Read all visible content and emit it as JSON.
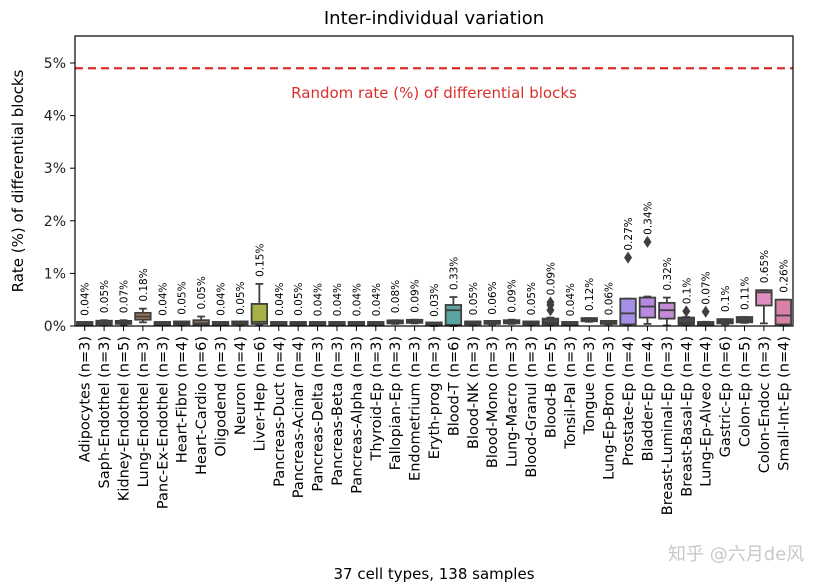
{
  "chart_data": {
    "type": "box",
    "title": "Inter-individual variation",
    "xlabel": "37 cell types, 138 samples",
    "ylabel": "Rate (%) of differential blocks",
    "ylim": [
      0,
      5.5
    ],
    "yticks": [
      0,
      1,
      2,
      3,
      4,
      5
    ],
    "ytick_labels": [
      "0%",
      "1%",
      "2%",
      "3%",
      "4%",
      "5%"
    ],
    "reference_line": {
      "value": 4.9,
      "label": "Random rate (%) of differential blocks",
      "color": "#d9302c",
      "style": "dashed"
    },
    "grid": false,
    "categories": [
      {
        "name": "Adipocytes (n=3)",
        "mean_label": "0.04%",
        "q1": 0.02,
        "median": 0.03,
        "q3": 0.05,
        "whislo": 0.01,
        "whishi": 0.06,
        "fliers": [],
        "color": "#4a4a4a"
      },
      {
        "name": "Saph-Endothel (n=3)",
        "mean_label": "0.05%",
        "q1": 0.03,
        "median": 0.05,
        "q3": 0.1,
        "whislo": 0.02,
        "whishi": 0.11,
        "fliers": [],
        "color": "#4a4a4a"
      },
      {
        "name": "Kidney-Endothel (n=5)",
        "mean_label": "0.07%",
        "q1": 0.04,
        "median": 0.06,
        "q3": 0.09,
        "whislo": 0.02,
        "whishi": 0.11,
        "fliers": [],
        "color": "#4a4a4a"
      },
      {
        "name": "Lung-Endothel (n=3)",
        "mean_label": "0.18%",
        "q1": 0.12,
        "median": 0.18,
        "q3": 0.25,
        "whislo": 0.07,
        "whishi": 0.33,
        "fliers": [],
        "color": "#a57654"
      },
      {
        "name": "Panc-Ex-Endothel (n=3)",
        "mean_label": "0.04%",
        "q1": 0.02,
        "median": 0.03,
        "q3": 0.05,
        "whislo": 0.01,
        "whishi": 0.06,
        "fliers": [],
        "color": "#4a4a4a"
      },
      {
        "name": "Heart-Fibro (n=4)",
        "mean_label": "0.05%",
        "q1": 0.03,
        "median": 0.05,
        "q3": 0.07,
        "whislo": 0.02,
        "whishi": 0.08,
        "fliers": [],
        "color": "#4a4a4a"
      },
      {
        "name": "Heart-Cardio (n=6)",
        "mean_label": "0.05%",
        "q1": 0.02,
        "median": 0.05,
        "q3": 0.11,
        "whislo": 0.01,
        "whishi": 0.18,
        "fliers": [],
        "color": "#8a7560"
      },
      {
        "name": "Oligodend (n=3)",
        "mean_label": "0.04%",
        "q1": 0.02,
        "median": 0.03,
        "q3": 0.05,
        "whislo": 0.01,
        "whishi": 0.06,
        "fliers": [],
        "color": "#4a4a4a"
      },
      {
        "name": "Neuron (n=4)",
        "mean_label": "0.05%",
        "q1": 0.03,
        "median": 0.05,
        "q3": 0.07,
        "whislo": 0.02,
        "whishi": 0.08,
        "fliers": [],
        "color": "#4a4a4a"
      },
      {
        "name": "Liver-Hep (n=6)",
        "mean_label": "0.15%",
        "q1": 0.04,
        "median": 0.08,
        "q3": 0.42,
        "whislo": 0.02,
        "whishi": 0.8,
        "fliers": [],
        "color": "#a8b145"
      },
      {
        "name": "Pancreas-Duct (n=4)",
        "mean_label": "0.04%",
        "q1": 0.02,
        "median": 0.03,
        "q3": 0.05,
        "whislo": 0.01,
        "whishi": 0.06,
        "fliers": [],
        "color": "#4a4a4a"
      },
      {
        "name": "Pancreas-Acinar (n=4)",
        "mean_label": "0.05%",
        "q1": 0.02,
        "median": 0.04,
        "q3": 0.05,
        "whislo": 0.01,
        "whishi": 0.06,
        "fliers": [],
        "color": "#4a4a4a"
      },
      {
        "name": "Pancreas-Delta (n=3)",
        "mean_label": "0.04%",
        "q1": 0.02,
        "median": 0.03,
        "q3": 0.05,
        "whislo": 0.01,
        "whishi": 0.05,
        "fliers": [],
        "color": "#4a4a4a"
      },
      {
        "name": "Pancreas-Beta (n=3)",
        "mean_label": "0.04%",
        "q1": 0.02,
        "median": 0.03,
        "q3": 0.05,
        "whislo": 0.01,
        "whishi": 0.05,
        "fliers": [],
        "color": "#4a4a4a"
      },
      {
        "name": "Pancreas-Alpha (n=3)",
        "mean_label": "0.04%",
        "q1": 0.02,
        "median": 0.03,
        "q3": 0.05,
        "whislo": 0.01,
        "whishi": 0.05,
        "fliers": [],
        "color": "#4a4a4a"
      },
      {
        "name": "Thyroid-Ep (n=3)",
        "mean_label": "0.04%",
        "q1": 0.02,
        "median": 0.03,
        "q3": 0.05,
        "whislo": 0.01,
        "whishi": 0.05,
        "fliers": [],
        "color": "#4a4a4a"
      },
      {
        "name": "Fallopian-Ep (n=3)",
        "mean_label": "0.08%",
        "q1": 0.05,
        "median": 0.07,
        "q3": 0.1,
        "whislo": 0.04,
        "whishi": 0.11,
        "fliers": [],
        "color": "#4a4a4a"
      },
      {
        "name": "Endometrium (n=3)",
        "mean_label": "0.09%",
        "q1": 0.06,
        "median": 0.08,
        "q3": 0.11,
        "whislo": 0.05,
        "whishi": 0.12,
        "fliers": [],
        "color": "#4a4a4a"
      },
      {
        "name": "Eryth-prog (n=3)",
        "mean_label": "0.03%",
        "q1": 0.01,
        "median": 0.02,
        "q3": 0.04,
        "whislo": 0.0,
        "whishi": 0.04,
        "fliers": [],
        "color": "#4a4a4a"
      },
      {
        "name": "Blood-T (n=6)",
        "mean_label": "0.33%",
        "q1": 0.02,
        "median": 0.3,
        "q3": 0.4,
        "whislo": 0.0,
        "whishi": 0.55,
        "fliers": [],
        "color": "#5aa5a0"
      },
      {
        "name": "Blood-NK (n=3)",
        "mean_label": "0.05%",
        "q1": 0.03,
        "median": 0.05,
        "q3": 0.07,
        "whislo": 0.02,
        "whishi": 0.07,
        "fliers": [],
        "color": "#4a4a4a"
      },
      {
        "name": "Blood-Mono (n=3)",
        "mean_label": "0.06%",
        "q1": 0.04,
        "median": 0.06,
        "q3": 0.08,
        "whislo": 0.03,
        "whishi": 0.08,
        "fliers": [],
        "color": "#4a4a4a"
      },
      {
        "name": "Lung-Macro (n=3)",
        "mean_label": "0.09%",
        "q1": 0.05,
        "median": 0.08,
        "q3": 0.11,
        "whislo": 0.04,
        "whishi": 0.12,
        "fliers": [],
        "color": "#4a4a4a"
      },
      {
        "name": "Blood-Granul (n=3)",
        "mean_label": "0.05%",
        "q1": 0.03,
        "median": 0.05,
        "q3": 0.07,
        "whislo": 0.02,
        "whishi": 0.07,
        "fliers": [],
        "color": "#4a4a4a"
      },
      {
        "name": "Blood-B (n=5)",
        "mean_label": "0.09%",
        "q1": 0.03,
        "median": 0.06,
        "q3": 0.14,
        "whislo": 0.01,
        "whishi": 0.16,
        "fliers": [
          0.3,
          0.4,
          0.45
        ],
        "color": "#4a4a4a"
      },
      {
        "name": "Tonsil-Pal (n=3)",
        "mean_label": "0.04%",
        "q1": 0.02,
        "median": 0.03,
        "q3": 0.05,
        "whislo": 0.01,
        "whishi": 0.05,
        "fliers": [],
        "color": "#4a4a4a"
      },
      {
        "name": "Tongue (n=3)",
        "mean_label": "0.12%",
        "q1": 0.09,
        "median": 0.12,
        "q3": 0.15,
        "whislo": 0.08,
        "whishi": 0.15,
        "fliers": [],
        "color": "#4a4a4a"
      },
      {
        "name": "Lung-Ep-Bron (n=3)",
        "mean_label": "0.06%",
        "q1": 0.04,
        "median": 0.05,
        "q3": 0.07,
        "whislo": 0.03,
        "whishi": 0.07,
        "fliers": [],
        "color": "#4a4a4a"
      },
      {
        "name": "Prostate-Ep (n=4)",
        "mean_label": "0.27%",
        "q1": 0.03,
        "median": 0.24,
        "q3": 0.52,
        "whislo": 0.02,
        "whishi": 0.52,
        "fliers": [
          1.3
        ],
        "color": "#a48ee6"
      },
      {
        "name": "Bladder-Ep (n=4)",
        "mean_label": "0.34%",
        "q1": 0.16,
        "median": 0.37,
        "q3": 0.54,
        "whislo": 0.04,
        "whishi": 0.56,
        "fliers": [
          1.6
        ],
        "color": "#b78ae0"
      },
      {
        "name": "Breast-Luminal-Ep (n=3)",
        "mean_label": "0.32%",
        "q1": 0.14,
        "median": 0.3,
        "q3": 0.44,
        "whislo": 0.01,
        "whishi": 0.54,
        "fliers": [],
        "color": "#c58ad8"
      },
      {
        "name": "Breast-Basal-Ep (n=4)",
        "mean_label": "0.1%",
        "q1": 0.03,
        "median": 0.06,
        "q3": 0.16,
        "whislo": 0.01,
        "whishi": 0.17,
        "fliers": [
          0.28
        ],
        "color": "#4a4a4a"
      },
      {
        "name": "Lung-Ep-Alveo (n=4)",
        "mean_label": "0.07%",
        "q1": 0.02,
        "median": 0.04,
        "q3": 0.07,
        "whislo": 0.01,
        "whishi": 0.08,
        "fliers": [
          0.27
        ],
        "color": "#4a4a4a"
      },
      {
        "name": "Gastric-Ep (n=6)",
        "mean_label": "0.1%",
        "q1": 0.05,
        "median": 0.09,
        "q3": 0.13,
        "whislo": 0.03,
        "whishi": 0.13,
        "fliers": [],
        "color": "#4a4a4a"
      },
      {
        "name": "Colon-Ep (n=5)",
        "mean_label": "0.11%",
        "q1": 0.07,
        "median": 0.11,
        "q3": 0.17,
        "whislo": 0.06,
        "whishi": 0.17,
        "fliers": [],
        "color": "#4a4a4a"
      },
      {
        "name": "Colon-Endoc (n=3)",
        "mean_label": "0.65%",
        "q1": 0.39,
        "median": 0.64,
        "q3": 0.68,
        "whislo": 0.05,
        "whishi": 0.68,
        "fliers": [],
        "color": "#e08ec0"
      },
      {
        "name": "Small-Int-Ep (n=4)",
        "mean_label": "0.26%",
        "q1": 0.03,
        "median": 0.2,
        "q3": 0.5,
        "whislo": 0.02,
        "whishi": 0.5,
        "fliers": [],
        "color": "#d882a8"
      }
    ]
  },
  "watermark": "知乎 @六月de风"
}
